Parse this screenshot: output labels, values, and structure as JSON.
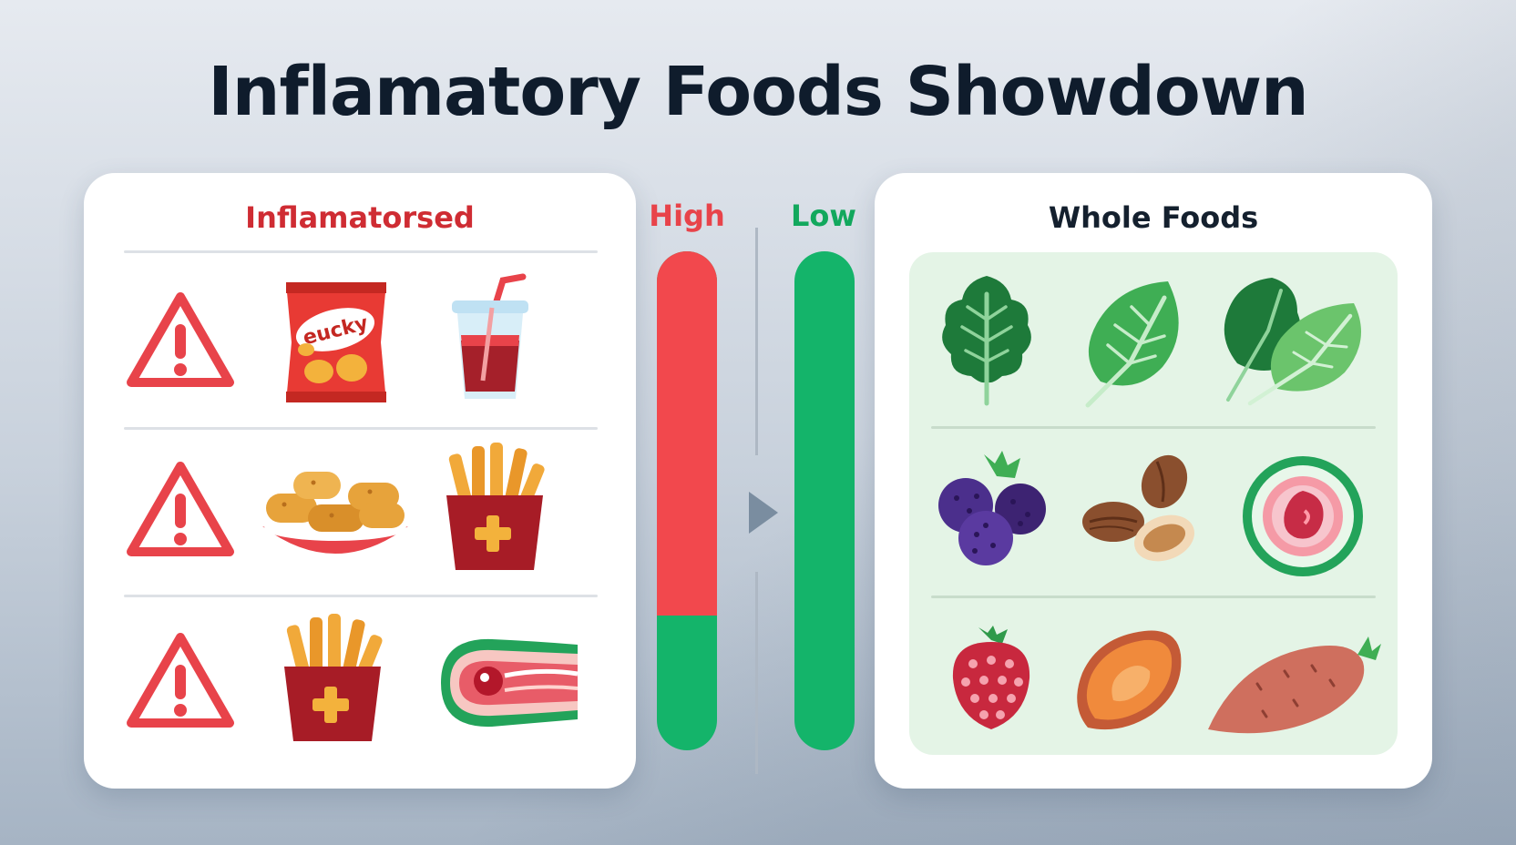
{
  "title": "Inflamatory Foods Showdown",
  "left_panel": {
    "heading": "Inflamatorsed",
    "rows": [
      [
        "warning-triangle",
        "chips-bag",
        "soda-cup"
      ],
      [
        "warning-triangle",
        "fried-nuggets-plate",
        "fries-box"
      ],
      [
        "warning-triangle",
        "fries-box",
        "bacon-strip"
      ]
    ],
    "chips_bag_text": "eucky"
  },
  "meter": {
    "high_label": "High",
    "low_label": "Low",
    "high_bar_red_fraction": 0.73,
    "low_bar_red_fraction": 0
  },
  "right_panel": {
    "heading": "Whole Foods",
    "rows": [
      [
        "kale-leaf",
        "spinach-leaf",
        "mixed-greens"
      ],
      [
        "blackberries",
        "almonds",
        "sliced-fruit"
      ],
      [
        "raspberry",
        "sweet-potato-slice",
        "sweet-potato"
      ]
    ]
  },
  "colors": {
    "warning_red": "#e8434a",
    "heading_red": "#cf2c33",
    "meter_red": "#f2484d",
    "meter_green": "#14b46a",
    "whole_foods_bg": "#e4f4e6"
  }
}
